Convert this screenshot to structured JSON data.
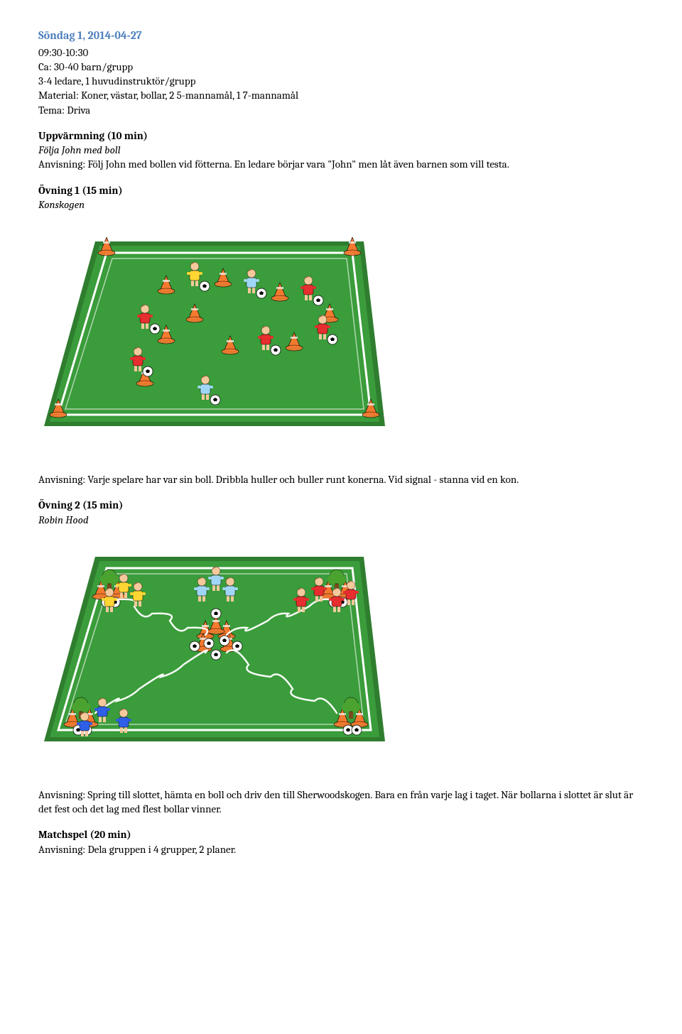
{
  "title": "Söndag 1, 2014-04-27",
  "meta": {
    "time": "09:30-10:30",
    "size": "Ca: 30-40 barn/grupp",
    "leaders": "3-4 ledare, 1 huvudinstruktör/grupp",
    "material": "Material: Koner, västar, bollar, 2 5-mannamål, 1 7-mannamål",
    "theme": "Tema: Driva"
  },
  "warmup": {
    "heading": "Uppvärmning (10 min)",
    "subtitle": "Följa John med boll",
    "text": "Anvisning: Följ John med bollen vid fötterna. En ledare börjar vara \"John\" men låt även barnen som vill testa."
  },
  "ex1": {
    "heading": "Övning 1 (15 min)",
    "subtitle": "Konskogen",
    "text": "Anvisning: Varje spelare har var sin boll. Dribbla huller och buller runt konerna. Vid signal - stanna vid en kon.",
    "diagram": {
      "field_color": "#3a9c3a",
      "field_dark": "#2f7d2f",
      "line_color": "#ffffff",
      "cone_color": "#f47a2f",
      "ball_color": "#ffffff",
      "shirt_colors": [
        "#e62e2e",
        "#ffd633",
        "#9fd6f5",
        "#e62e2e",
        "#e62e2e",
        "#e62e2e",
        "#9fd6f5",
        "#e62e2e"
      ],
      "skin": "#f5c99b",
      "hair": "#a86b2d"
    }
  },
  "ex2": {
    "heading": "Övning 2 (15 min)",
    "subtitle": "Robin Hood",
    "text": "Anvisning: Spring till slottet, hämta en boll och driv den till Sherwoodskogen. Bara en från varje lag i taget. När bollarna i slottet är slut är det fest och det lag med flest bollar vinner.",
    "diagram": {
      "field_color": "#3a9c3a",
      "field_dark": "#2f7d2f",
      "line_color": "#ffffff",
      "cone_color": "#f47a2f",
      "ball_color": "#ffffff",
      "tree_green": "#4aa32f",
      "tree_trunk": "#7a4a1f",
      "path_color": "#ffffff",
      "team_colors": {
        "yellow": "#ffd633",
        "lightblue": "#9fd6f5",
        "red": "#e62e2e",
        "blue": "#2e5fe6"
      },
      "skin": "#f5c99b",
      "hair": "#a86b2d"
    }
  },
  "match": {
    "heading": "Matchspel (20 min)",
    "text": "Anvisning: Dela gruppen i 4 grupper, 2 planer."
  }
}
